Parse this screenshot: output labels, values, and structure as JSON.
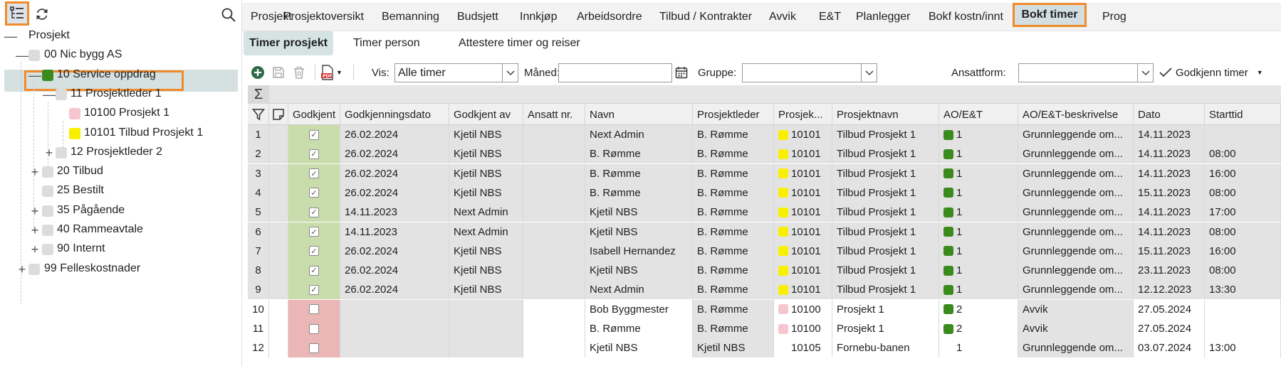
{
  "tree": {
    "nodes": [
      {
        "label": "Prosjekt",
        "color": null,
        "expander": "—"
      },
      {
        "label": "00 Nic bygg AS",
        "color": "#dcdcdc",
        "expander": "—"
      },
      {
        "label": "10 Service oppdrag",
        "color": "#3a8a1e",
        "expander": "—"
      },
      {
        "label": "11 Prosjektleder 1",
        "color": "#dcdcdc",
        "expander": "—"
      },
      {
        "label": "10100 Prosjekt 1",
        "color": "#f6c6cf",
        "expander": ""
      },
      {
        "label": "10101 Tilbud Prosjekt 1",
        "color": "#f8f000",
        "expander": ""
      },
      {
        "label": "12 Prosjektleder 2",
        "color": "#dcdcdc",
        "expander": "+"
      },
      {
        "label": "20 Tilbud",
        "color": "#dcdcdc",
        "expander": "+"
      },
      {
        "label": "25 Bestilt",
        "color": "#dcdcdc",
        "expander": ""
      },
      {
        "label": "35 Pågående",
        "color": "#dcdcdc",
        "expander": "+"
      },
      {
        "label": "40 Rammeavtale",
        "color": "#dcdcdc",
        "expander": "+"
      },
      {
        "label": "90 Internt",
        "color": "#dcdcdc",
        "expander": "+"
      },
      {
        "label": "99 Felleskostnader",
        "color": "#dcdcdc",
        "expander": "+"
      }
    ]
  },
  "top_tabs": [
    "Prosjekt",
    "Prosjektoversikt",
    "Bemanning",
    "Budsjett",
    "Innkjøp",
    "Arbeidsordre",
    "Tilbud / Kontrakter",
    "Avvik",
    "E&T",
    "Planlegger",
    "Bokf kostn/innt",
    "Bokf timer",
    "Prog"
  ],
  "sub_tabs": [
    "Timer prosjekt",
    "Timer person",
    "Attestere timer og reiser"
  ],
  "filters": {
    "vis_label": "Vis:",
    "vis_value": "Alle timer",
    "maned_label": "Måned:",
    "maned_value": "",
    "gruppe_label": "Gruppe:",
    "gruppe_value": "",
    "ansattform_label": "Ansattform:",
    "ansattform_value": "",
    "approve_label": "Godkjenn timer"
  },
  "columns": [
    "Godkjent",
    "Godkjenningsdato",
    "Godkjent av",
    "Ansatt nr.",
    "Navn",
    "Prosjektleder",
    "Prosjek...",
    "Prosjektnavn",
    "AO/E&T",
    "AO/E&T-beskrivelse",
    "Dato",
    "Starttid"
  ],
  "rows": [
    {
      "n": "1",
      "approved": true,
      "date": "26.02.2024",
      "by": "Kjetil NBS",
      "emp": "",
      "name": "Next Admin",
      "pl": "B. Rømme",
      "proj": "10101",
      "pcolor": "#f8f000",
      "pname": "Tilbud Prosjekt 1",
      "ao": "1",
      "aocolor": "#3a8a1e",
      "desc": "Grunnleggende om...",
      "dato": "14.11.2023",
      "start": ""
    },
    {
      "n": "2",
      "approved": true,
      "date": "26.02.2024",
      "by": "Kjetil NBS",
      "emp": "",
      "name": "B. Rømme",
      "pl": "B. Rømme",
      "proj": "10101",
      "pcolor": "#f8f000",
      "pname": "Tilbud Prosjekt 1",
      "ao": "1",
      "aocolor": "#3a8a1e",
      "desc": "Grunnleggende om...",
      "dato": "14.11.2023",
      "start": "08:00"
    },
    {
      "n": "3",
      "approved": true,
      "date": "26.02.2024",
      "by": "Kjetil NBS",
      "emp": "",
      "name": "B. Rømme",
      "pl": "B. Rømme",
      "proj": "10101",
      "pcolor": "#f8f000",
      "pname": "Tilbud Prosjekt 1",
      "ao": "1",
      "aocolor": "#3a8a1e",
      "desc": "Grunnleggende om...",
      "dato": "14.11.2023",
      "start": "16:00"
    },
    {
      "n": "4",
      "approved": true,
      "date": "26.02.2024",
      "by": "Kjetil NBS",
      "emp": "",
      "name": "B. Rømme",
      "pl": "B. Rømme",
      "proj": "10101",
      "pcolor": "#f8f000",
      "pname": "Tilbud Prosjekt 1",
      "ao": "1",
      "aocolor": "#3a8a1e",
      "desc": "Grunnleggende om...",
      "dato": "15.11.2023",
      "start": "08:00"
    },
    {
      "n": "5",
      "approved": true,
      "date": "14.11.2023",
      "by": "Next Admin",
      "emp": "",
      "name": "Kjetil NBS",
      "pl": "B. Rømme",
      "proj": "10101",
      "pcolor": "#f8f000",
      "pname": "Tilbud Prosjekt 1",
      "ao": "1",
      "aocolor": "#3a8a1e",
      "desc": "Grunnleggende om...",
      "dato": "14.11.2023",
      "start": "17:00"
    },
    {
      "n": "6",
      "approved": true,
      "date": "14.11.2023",
      "by": "Next Admin",
      "emp": "",
      "name": "Kjetil NBS",
      "pl": "B. Rømme",
      "proj": "10101",
      "pcolor": "#f8f000",
      "pname": "Tilbud Prosjekt 1",
      "ao": "1",
      "aocolor": "#3a8a1e",
      "desc": "Grunnleggende om...",
      "dato": "14.11.2023",
      "start": "08:00"
    },
    {
      "n": "7",
      "approved": true,
      "date": "26.02.2024",
      "by": "Kjetil NBS",
      "emp": "",
      "name": "Isabell Hernandez",
      "pl": "B. Rømme",
      "proj": "10101",
      "pcolor": "#f8f000",
      "pname": "Tilbud Prosjekt 1",
      "ao": "1",
      "aocolor": "#3a8a1e",
      "desc": "Grunnleggende om...",
      "dato": "15.11.2023",
      "start": "16:00"
    },
    {
      "n": "8",
      "approved": true,
      "date": "26.02.2024",
      "by": "Kjetil NBS",
      "emp": "",
      "name": "Kjetil NBS",
      "pl": "B. Rømme",
      "proj": "10101",
      "pcolor": "#f8f000",
      "pname": "Tilbud Prosjekt 1",
      "ao": "1",
      "aocolor": "#3a8a1e",
      "desc": "Grunnleggende om...",
      "dato": "23.11.2023",
      "start": "08:00"
    },
    {
      "n": "9",
      "approved": true,
      "date": "26.02.2024",
      "by": "Kjetil NBS",
      "emp": "",
      "name": "Next Admin",
      "pl": "B. Rømme",
      "proj": "10101",
      "pcolor": "#f8f000",
      "pname": "Tilbud Prosjekt 1",
      "ao": "1",
      "aocolor": "#3a8a1e",
      "desc": "Grunnleggende om...",
      "dato": "12.12.2023",
      "start": "13:30"
    },
    {
      "n": "10",
      "approved": false,
      "date": "",
      "by": "",
      "emp": "",
      "name": "Bob Byggmester",
      "pl": "B. Rømme",
      "proj": "10100",
      "pcolor": "#f6c6cf",
      "pname": "Prosjekt 1",
      "ao": "2",
      "aocolor": "#3a8a1e",
      "desc": "Avvik",
      "dato": "27.05.2024",
      "start": ""
    },
    {
      "n": "11",
      "approved": false,
      "date": "",
      "by": "",
      "emp": "",
      "name": "B. Rømme",
      "pl": "B. Rømme",
      "proj": "10100",
      "pcolor": "#f6c6cf",
      "pname": "Prosjekt 1",
      "ao": "2",
      "aocolor": "#3a8a1e",
      "desc": "Avvik",
      "dato": "27.05.2024",
      "start": ""
    },
    {
      "n": "12",
      "approved": false,
      "date": "",
      "by": "",
      "emp": "",
      "name": "Kjetil NBS",
      "pl": "Kjetil NBS",
      "proj": "10105",
      "pcolor": "#ffffff",
      "pname": "Fornebu-banen",
      "ao": "1",
      "aocolor": "#ffffff",
      "desc": "Grunnleggende om...",
      "dato": "03.07.2024",
      "start": "13:00"
    }
  ],
  "colors": {
    "accent_orange": "#f08a2a",
    "approved_green": "#c9dcac",
    "unapproved_red": "#ebb6b6"
  }
}
